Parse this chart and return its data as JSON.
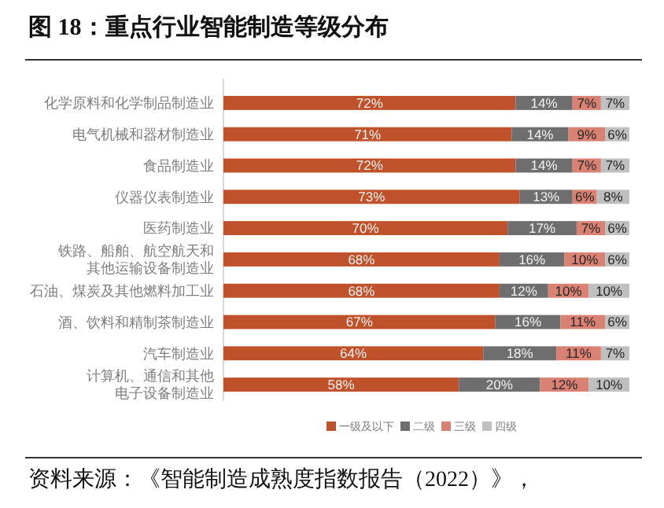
{
  "chart_data": {
    "type": "bar",
    "orientation": "horizontal",
    "stacked": true,
    "title": "图 18：重点行业智能制造等级分布",
    "categories": [
      "化学原料和化学制品制造业",
      "电气机械和器材制造业",
      "食品制造业",
      "仪器仪表制造业",
      "医药制造业",
      "铁路、船舶、航空航天和其他运输设备制造业",
      "石油、煤炭及其他燃料加工业",
      "酒、饮料和精制茶制造业",
      "汽车制造业",
      "计算机、通信和其他电子设备制造业"
    ],
    "series": [
      {
        "name": "一级及以下",
        "color": "#c0522b",
        "values": [
          72,
          71,
          72,
          73,
          70,
          68,
          68,
          67,
          64,
          58
        ],
        "value_labels": [
          "72%",
          "71%",
          "72%",
          "73%",
          "70%",
          "68%",
          "68%",
          "67%",
          "64%",
          "58%"
        ]
      },
      {
        "name": "二级",
        "color": "#6e6e6e",
        "values": [
          14,
          14,
          14,
          13,
          17,
          16,
          12,
          16,
          18,
          20
        ],
        "value_labels": [
          "14%",
          "14%",
          "14%",
          "13%",
          "17%",
          "16%",
          "12%",
          "16%",
          "18%",
          "20%"
        ]
      },
      {
        "name": "三级",
        "color": "#d98173",
        "values": [
          7,
          9,
          7,
          6,
          7,
          10,
          10,
          11,
          11,
          12
        ],
        "value_labels": [
          "7%",
          "9%",
          "7%",
          "6%",
          "7%",
          "10%",
          "10%",
          "11%",
          "11%",
          "12%"
        ]
      },
      {
        "name": "四级",
        "color": "#bfbfbf",
        "values": [
          7,
          6,
          7,
          8,
          6,
          6,
          10,
          6,
          7,
          10
        ],
        "value_labels": [
          "7%",
          "6%",
          "7%",
          "8%",
          "6%",
          "6%",
          "10%",
          "6%",
          "7%",
          "10%"
        ]
      }
    ],
    "xlim": [
      0,
      100
    ],
    "tick_labels": "y",
    "legend": "bottom",
    "annotations": [
      "资料来源：《智能制造成熟度指数报告（2022）》，"
    ]
  }
}
